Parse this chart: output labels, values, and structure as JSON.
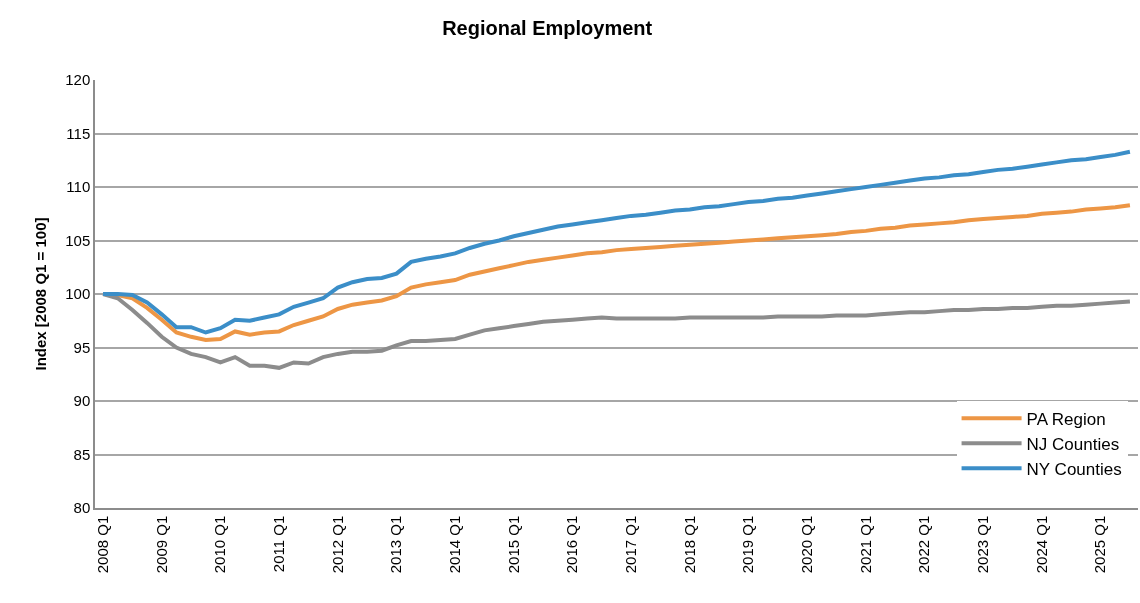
{
  "chart_data": {
    "type": "line",
    "title": "Regional Employment",
    "ylabel": "Index [2008 Q1 = 100]",
    "categories": [
      "2008 Q1",
      null,
      null,
      null,
      "2009 Q1",
      null,
      null,
      null,
      "2010 Q1",
      null,
      null,
      null,
      "2011 Q1",
      null,
      null,
      null,
      "2012 Q1",
      null,
      null,
      null,
      "2013 Q1",
      null,
      null,
      null,
      "2014 Q1",
      null,
      null,
      null,
      "2015 Q1",
      null,
      null,
      null,
      "2016 Q1",
      null,
      null,
      null,
      "2017 Q1",
      null,
      null,
      null,
      "2018 Q1",
      null,
      null,
      null,
      "2019 Q1",
      null,
      null,
      null,
      "2020 Q1",
      null,
      null,
      null,
      "2021 Q1",
      null,
      null,
      null,
      "2022 Q1",
      null,
      null,
      null,
      "2023 Q1",
      null,
      null,
      null,
      "2024 Q1",
      null,
      null,
      null,
      "2025 Q1",
      null,
      null
    ],
    "series": [
      {
        "name": "PA Region",
        "color": "#ed9645",
        "values": [
          100,
          99.9,
          99.6,
          98.7,
          97.6,
          96.4,
          96.0,
          95.7,
          95.8,
          96.5,
          96.2,
          96.4,
          96.5,
          97.1,
          97.5,
          97.9,
          98.6,
          99.0,
          99.2,
          99.4,
          99.8,
          100.6,
          100.9,
          101.1,
          101.3,
          101.8,
          102.1,
          102.4,
          102.7,
          103.0,
          103.2,
          103.4,
          103.6,
          103.8,
          103.9,
          104.1,
          104.2,
          104.3,
          104.4,
          104.5,
          104.6,
          104.7,
          104.8,
          104.9,
          105.0,
          105.1,
          105.2,
          105.3,
          105.4,
          105.5,
          105.6,
          105.8,
          105.9,
          106.1,
          106.2,
          106.4,
          106.5,
          106.6,
          106.7,
          106.9,
          107.0,
          107.1,
          107.2,
          107.3,
          107.5,
          107.6,
          107.7,
          107.9,
          108.0,
          108.1,
          108.3
        ]
      },
      {
        "name": "NJ Counties",
        "color": "#8c8c8c",
        "values": [
          100,
          99.6,
          98.5,
          97.3,
          96.0,
          95.0,
          94.4,
          94.1,
          93.6,
          94.1,
          93.3,
          93.3,
          93.1,
          93.6,
          93.5,
          94.1,
          94.4,
          94.6,
          94.6,
          94.7,
          95.2,
          95.6,
          95.6,
          95.7,
          95.8,
          96.2,
          96.6,
          96.8,
          97.0,
          97.2,
          97.4,
          97.5,
          97.6,
          97.7,
          97.8,
          97.7,
          97.7,
          97.7,
          97.7,
          97.7,
          97.8,
          97.8,
          97.8,
          97.8,
          97.8,
          97.8,
          97.9,
          97.9,
          97.9,
          97.9,
          98.0,
          98.0,
          98.0,
          98.1,
          98.2,
          98.3,
          98.3,
          98.4,
          98.5,
          98.5,
          98.6,
          98.6,
          98.7,
          98.7,
          98.8,
          98.9,
          98.9,
          99.0,
          99.1,
          99.2,
          99.3
        ]
      },
      {
        "name": "NY Counties",
        "color": "#3b8ec8",
        "values": [
          100,
          100,
          99.9,
          99.2,
          98.1,
          96.9,
          96.9,
          96.4,
          96.8,
          97.6,
          97.5,
          97.8,
          98.1,
          98.8,
          99.2,
          99.6,
          100.6,
          101.1,
          101.4,
          101.5,
          101.9,
          103.0,
          103.3,
          103.5,
          103.8,
          104.3,
          104.7,
          105.0,
          105.4,
          105.7,
          106.0,
          106.3,
          106.5,
          106.7,
          106.9,
          107.1,
          107.3,
          107.4,
          107.6,
          107.8,
          107.9,
          108.1,
          108.2,
          108.4,
          108.6,
          108.7,
          108.9,
          109.0,
          109.2,
          109.4,
          109.6,
          109.8,
          110.0,
          110.2,
          110.4,
          110.6,
          110.8,
          110.9,
          111.1,
          111.2,
          111.4,
          111.6,
          111.7,
          111.9,
          112.1,
          112.3,
          112.5,
          112.6,
          112.8,
          113.0,
          113.3
        ]
      }
    ],
    "ylim": [
      80,
      120
    ],
    "yticks": [
      80,
      85,
      90,
      95,
      100,
      105,
      110,
      115,
      120
    ],
    "grid": "y",
    "legend": "bottom right",
    "marker": "none",
    "line_style": "solid"
  }
}
